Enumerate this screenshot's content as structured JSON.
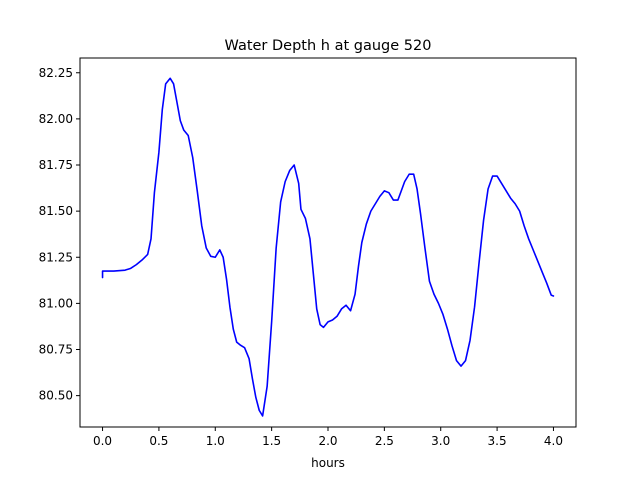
{
  "chart_data": {
    "type": "line",
    "title": "Water Depth h at gauge 520",
    "xlabel": "hours",
    "ylabel": "",
    "xlim": [
      -0.2,
      4.2
    ],
    "ylim": [
      80.33,
      82.33
    ],
    "xticks": [
      0.0,
      0.5,
      1.0,
      1.5,
      2.0,
      2.5,
      3.0,
      3.5,
      4.0
    ],
    "xtick_labels": [
      "0.0",
      "0.5",
      "1.0",
      "1.5",
      "2.0",
      "2.5",
      "3.0",
      "3.5",
      "4.0"
    ],
    "yticks": [
      80.5,
      80.75,
      81.0,
      81.25,
      81.5,
      81.75,
      82.0,
      82.25
    ],
    "ytick_labels": [
      "80.50",
      "80.75",
      "81.00",
      "81.25",
      "81.50",
      "81.75",
      "82.00",
      "82.25"
    ],
    "grid": false,
    "series": [
      {
        "color": "#0000ff",
        "x": [
          0.0,
          0.0,
          0.1,
          0.2,
          0.25,
          0.3,
          0.35,
          0.4,
          0.43,
          0.46,
          0.5,
          0.53,
          0.56,
          0.6,
          0.63,
          0.66,
          0.69,
          0.72,
          0.76,
          0.8,
          0.84,
          0.88,
          0.92,
          0.96,
          1.0,
          1.04,
          1.07,
          1.1,
          1.13,
          1.16,
          1.19,
          1.22,
          1.26,
          1.3,
          1.33,
          1.36,
          1.39,
          1.42,
          1.46,
          1.5,
          1.54,
          1.58,
          1.62,
          1.66,
          1.7,
          1.74,
          1.76,
          1.8,
          1.84,
          1.87,
          1.9,
          1.93,
          1.96,
          2.0,
          2.04,
          2.08,
          2.12,
          2.16,
          2.2,
          2.24,
          2.27,
          2.3,
          2.34,
          2.38,
          2.42,
          2.46,
          2.5,
          2.54,
          2.58,
          2.62,
          2.65,
          2.68,
          2.72,
          2.76,
          2.79,
          2.82,
          2.86,
          2.9,
          2.94,
          2.98,
          3.02,
          3.06,
          3.1,
          3.14,
          3.18,
          3.22,
          3.26,
          3.3,
          3.34,
          3.38,
          3.42,
          3.46,
          3.5,
          3.54,
          3.58,
          3.62,
          3.66,
          3.7,
          3.74,
          3.78,
          3.82,
          3.86,
          3.9,
          3.94,
          3.98,
          4.0
        ],
        "y": [
          81.14,
          81.175,
          81.175,
          81.18,
          81.19,
          81.21,
          81.235,
          81.265,
          81.35,
          81.6,
          81.82,
          82.05,
          82.19,
          82.22,
          82.19,
          82.09,
          81.99,
          81.94,
          81.91,
          81.79,
          81.61,
          81.42,
          81.3,
          81.255,
          81.25,
          81.29,
          81.25,
          81.13,
          80.98,
          80.86,
          80.79,
          80.775,
          80.76,
          80.7,
          80.59,
          80.49,
          80.42,
          80.39,
          80.55,
          80.9,
          81.3,
          81.55,
          81.66,
          81.72,
          81.75,
          81.65,
          81.51,
          81.46,
          81.35,
          81.16,
          80.97,
          80.885,
          80.87,
          80.9,
          80.91,
          80.93,
          80.97,
          80.99,
          80.96,
          81.05,
          81.2,
          81.33,
          81.43,
          81.5,
          81.54,
          81.58,
          81.61,
          81.6,
          81.56,
          81.56,
          81.61,
          81.66,
          81.7,
          81.7,
          81.62,
          81.49,
          81.3,
          81.12,
          81.05,
          81.0,
          80.94,
          80.86,
          80.77,
          80.69,
          80.66,
          80.69,
          80.8,
          80.98,
          81.22,
          81.45,
          81.62,
          81.69,
          81.69,
          81.65,
          81.61,
          81.57,
          81.54,
          81.5,
          81.42,
          81.35,
          81.29,
          81.23,
          81.17,
          81.11,
          81.045,
          81.04
        ]
      }
    ]
  }
}
